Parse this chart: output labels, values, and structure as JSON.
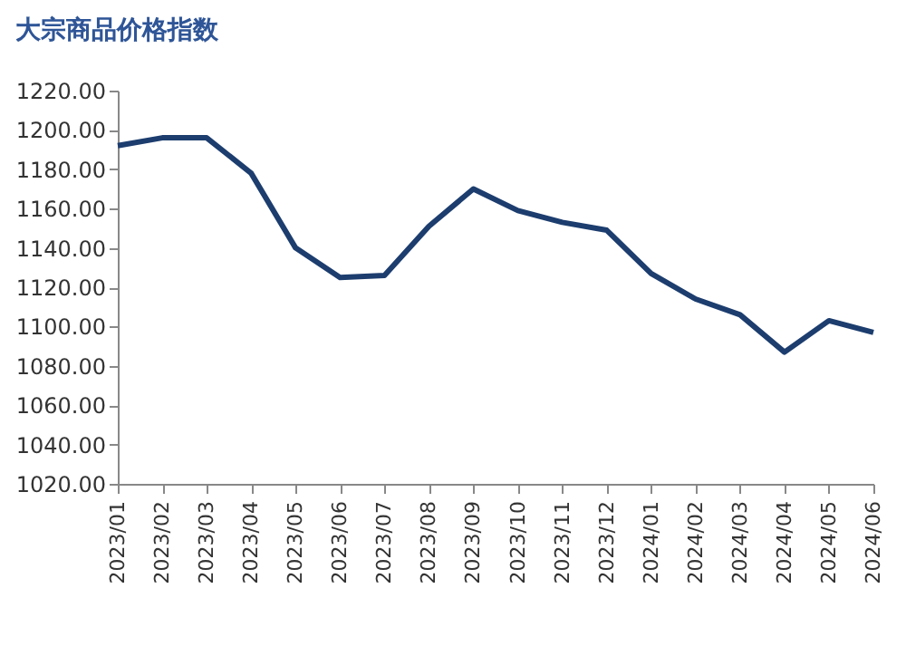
{
  "chart_data": {
    "type": "line",
    "title": "大宗商品价格指数",
    "categories": [
      "2023/01",
      "2023/02",
      "2023/03",
      "2023/04",
      "2023/05",
      "2023/06",
      "2023/07",
      "2023/08",
      "2023/09",
      "2023/10",
      "2023/11",
      "2023/12",
      "2024/01",
      "2024/02",
      "2024/03",
      "2024/04",
      "2024/05",
      "2024/06"
    ],
    "series": [
      {
        "color": "#1c3d6e",
        "values": [
          1192,
          1196,
          1196,
          1178,
          1140,
          1125,
          1126,
          1151,
          1170,
          1159,
          1153,
          1149,
          1127,
          1114,
          1106,
          1087,
          1103,
          1097
        ]
      }
    ],
    "ylim": [
      1020,
      1220
    ],
    "yticks": [
      {
        "value": 1020,
        "label": "1020.00"
      },
      {
        "value": 1040,
        "label": "1040.00"
      },
      {
        "value": 1060,
        "label": "1060.00"
      },
      {
        "value": 1080,
        "label": "1080.00"
      },
      {
        "value": 1100,
        "label": "1100.00"
      },
      {
        "value": 1120,
        "label": "1120.00"
      },
      {
        "value": 1140,
        "label": "1140.00"
      },
      {
        "value": 1160,
        "label": "1160.00"
      },
      {
        "value": 1180,
        "label": "1180.00"
      },
      {
        "value": 1200,
        "label": "1200.00"
      },
      {
        "value": 1220,
        "label": "1220.00"
      }
    ],
    "grid": false,
    "legend": false,
    "marker": "none",
    "line_style": "solid"
  }
}
